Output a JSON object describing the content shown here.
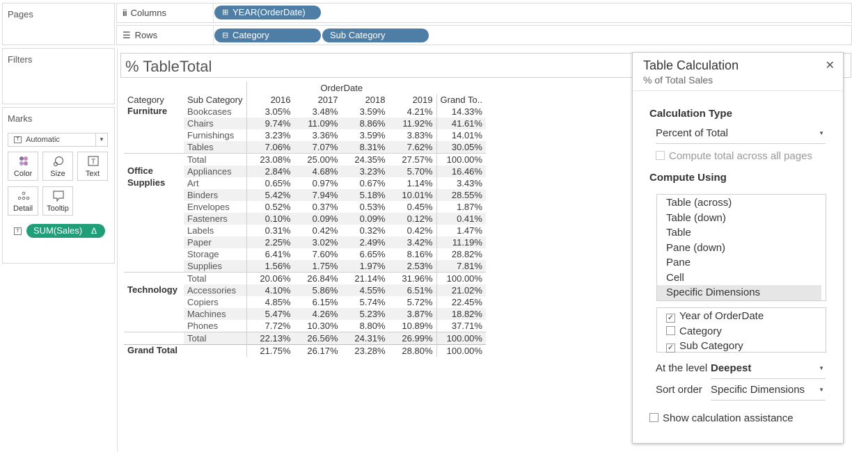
{
  "left": {
    "pages_title": "Pages",
    "filters_title": "Filters",
    "marks_title": "Marks",
    "mark_type": "Automatic",
    "mark_buttons": [
      "Color",
      "Size",
      "Text",
      "Detail",
      "Tooltip"
    ],
    "measure_pill": "SUM(Sales)",
    "measure_pill_delta": "Δ"
  },
  "shelves": {
    "columns_label": "Columns",
    "rows_label": "Rows",
    "columns_pill": "YEAR(OrderDate)",
    "rows_pills": [
      "Category",
      "Sub Category"
    ]
  },
  "view": {
    "title": "% TableTotal",
    "header_orderdate": "OrderDate",
    "col_headers": [
      "Category",
      "Sub Category",
      "2016",
      "2017",
      "2018",
      "2019",
      "Grand To.."
    ],
    "rows": [
      {
        "category": "Furniture",
        "sub": "Bookcases",
        "v": [
          "3.05%",
          "3.48%",
          "3.59%",
          "4.21%",
          "14.33%"
        ]
      },
      {
        "category": "",
        "sub": "Chairs",
        "v": [
          "9.74%",
          "11.09%",
          "8.86%",
          "11.92%",
          "41.61%"
        ]
      },
      {
        "category": "",
        "sub": "Furnishings",
        "v": [
          "3.23%",
          "3.36%",
          "3.59%",
          "3.83%",
          "14.01%"
        ]
      },
      {
        "category": "",
        "sub": "Tables",
        "v": [
          "7.06%",
          "7.07%",
          "8.31%",
          "7.62%",
          "30.05%"
        ]
      },
      {
        "category": "",
        "sub": "Total",
        "v": [
          "23.08%",
          "25.00%",
          "24.35%",
          "27.57%",
          "100.00%"
        ]
      },
      {
        "category": "Office",
        "sub": "Appliances",
        "v": [
          "2.84%",
          "4.68%",
          "3.23%",
          "5.70%",
          "16.46%"
        ]
      },
      {
        "category": "Supplies",
        "sub": "Art",
        "v": [
          "0.65%",
          "0.97%",
          "0.67%",
          "1.14%",
          "3.43%"
        ]
      },
      {
        "category": "",
        "sub": "Binders",
        "v": [
          "5.42%",
          "7.94%",
          "5.18%",
          "10.01%",
          "28.55%"
        ]
      },
      {
        "category": "",
        "sub": "Envelopes",
        "v": [
          "0.52%",
          "0.37%",
          "0.53%",
          "0.45%",
          "1.87%"
        ]
      },
      {
        "category": "",
        "sub": "Fasteners",
        "v": [
          "0.10%",
          "0.09%",
          "0.09%",
          "0.12%",
          "0.41%"
        ]
      },
      {
        "category": "",
        "sub": "Labels",
        "v": [
          "0.31%",
          "0.42%",
          "0.32%",
          "0.42%",
          "1.47%"
        ]
      },
      {
        "category": "",
        "sub": "Paper",
        "v": [
          "2.25%",
          "3.02%",
          "2.49%",
          "3.42%",
          "11.19%"
        ]
      },
      {
        "category": "",
        "sub": "Storage",
        "v": [
          "6.41%",
          "7.60%",
          "6.65%",
          "8.16%",
          "28.82%"
        ]
      },
      {
        "category": "",
        "sub": "Supplies",
        "v": [
          "1.56%",
          "1.75%",
          "1.97%",
          "2.53%",
          "7.81%"
        ]
      },
      {
        "category": "",
        "sub": "Total",
        "v": [
          "20.06%",
          "26.84%",
          "21.14%",
          "31.96%",
          "100.00%"
        ]
      },
      {
        "category": "Technology",
        "sub": "Accessories",
        "v": [
          "4.10%",
          "5.86%",
          "4.55%",
          "6.51%",
          "21.02%"
        ]
      },
      {
        "category": "",
        "sub": "Copiers",
        "v": [
          "4.85%",
          "6.15%",
          "5.74%",
          "5.72%",
          "22.45%"
        ]
      },
      {
        "category": "",
        "sub": "Machines",
        "v": [
          "5.47%",
          "4.26%",
          "5.23%",
          "3.87%",
          "18.82%"
        ]
      },
      {
        "category": "",
        "sub": "Phones",
        "v": [
          "7.72%",
          "10.30%",
          "8.80%",
          "10.89%",
          "37.71%"
        ]
      },
      {
        "category": "",
        "sub": "Total",
        "v": [
          "22.13%",
          "26.56%",
          "24.31%",
          "26.99%",
          "100.00%"
        ]
      }
    ],
    "grand_total": {
      "label": "Grand Total",
      "v": [
        "21.75%",
        "26.17%",
        "23.28%",
        "28.80%",
        "100.00%"
      ]
    }
  },
  "table_calc": {
    "title": "Table Calculation",
    "subtitle": "% of Total Sales",
    "close_glyph": "✕",
    "calc_type_heading": "Calculation Type",
    "calc_type_value": "Percent of Total",
    "compute_all_pages": "Compute total across all pages",
    "compute_using_heading": "Compute Using",
    "compute_options": [
      "Table (across)",
      "Table (down)",
      "Table",
      "Pane (down)",
      "Pane",
      "Cell",
      "Specific Dimensions"
    ],
    "selected_option": "Specific Dimensions",
    "dimensions": [
      {
        "label": "Year of OrderDate",
        "checked": true
      },
      {
        "label": "Category",
        "checked": false
      },
      {
        "label": "Sub Category",
        "checked": true
      }
    ],
    "level_label": "At the level",
    "level_value": "Deepest",
    "sort_label": "Sort order",
    "sort_value": "Specific Dimensions",
    "assist_label": "Show calculation assistance"
  },
  "colors": {
    "pill_blue": "#4e7ea6",
    "pill_green": "#1f9e78",
    "row_band": "#f1f1f1"
  }
}
